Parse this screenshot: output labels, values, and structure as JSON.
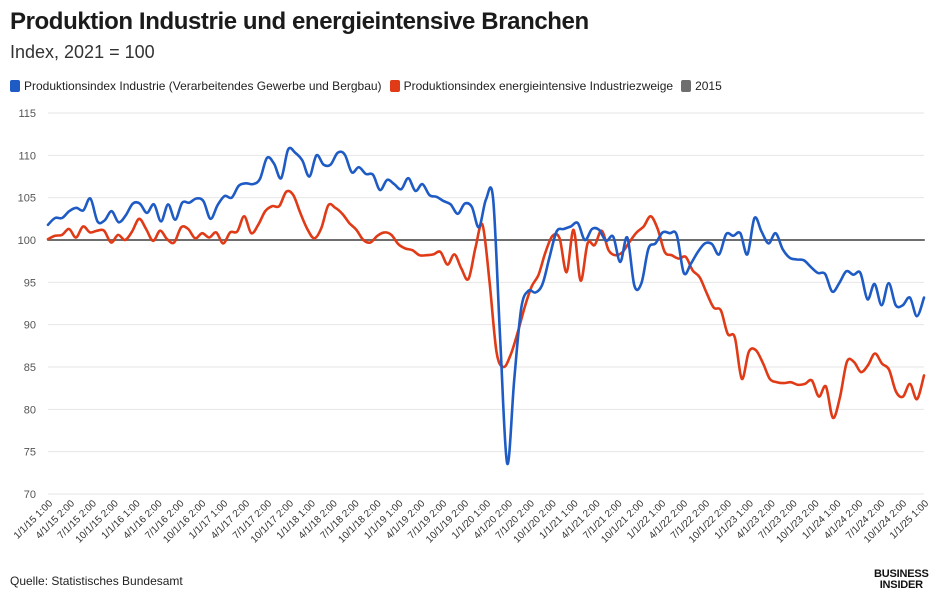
{
  "title": "Produktion Industrie und energieintensive Branchen",
  "subtitle": "Index, 2021 = 100",
  "source": "Quelle: Statistisches Bundesamt",
  "logo": {
    "line1": "BUSINESS",
    "line2": "INSIDER"
  },
  "chart_data": {
    "type": "line",
    "title": "Produktion Industrie und energieintensive Branchen",
    "subtitle": "Index, 2021 = 100",
    "xlabel": "",
    "ylabel": "",
    "ylim": [
      70,
      115
    ],
    "yticks": [
      70,
      75,
      80,
      85,
      90,
      95,
      100,
      105,
      110,
      115
    ],
    "grid": true,
    "legend_position": "top-left",
    "x_tick_labels": [
      "1/1/15 1:00",
      "4/1/15 2:00",
      "7/1/15 2:00",
      "10/1/15 2:00",
      "1/1/16 1:00",
      "4/1/16 2:00",
      "7/1/16 2:00",
      "10/1/16 2:00",
      "1/1/17 1:00",
      "4/1/17 2:00",
      "7/1/17 2:00",
      "10/1/17 2:00",
      "1/1/18 1:00",
      "4/1/18 2:00",
      "7/1/18 2:00",
      "10/1/18 2:00",
      "1/1/19 1:00",
      "4/1/19 2:00",
      "7/1/19 2:00",
      "10/1/19 2:00",
      "1/1/20 1:00",
      "4/1/20 2:00",
      "7/1/20 2:00",
      "10/1/20 2:00",
      "1/1/21 1:00",
      "4/1/21 2:00",
      "7/1/21 2:00",
      "10/1/21 2:00",
      "1/1/22 1:00",
      "4/1/22 2:00",
      "7/1/22 2:00",
      "10/1/22 2:00",
      "1/1/23 1:00",
      "4/1/23 2:00",
      "7/1/23 2:00",
      "10/1/23 2:00",
      "1/1/24 1:00",
      "4/1/24 2:00",
      "7/1/24 2:00",
      "10/1/24 2:00",
      "1/1/25 1:00"
    ],
    "series": [
      {
        "name": "Produktionsindex Industrie (Verarbeitendes Gewerbe und Bergbau)",
        "color": "#1f5bc4",
        "values": [
          101.8,
          102.6,
          102.6,
          103.4,
          103.8,
          103.5,
          104.9,
          102.2,
          102.3,
          103.4,
          102.1,
          102.9,
          104.3,
          104.3,
          103.2,
          104.2,
          102.2,
          104.2,
          102.4,
          104.4,
          104.4,
          104.9,
          104.6,
          102.5,
          104.1,
          105.2,
          105.0,
          106.4,
          106.7,
          106.6,
          107.2,
          109.7,
          109.0,
          107.3,
          110.7,
          110.3,
          109.4,
          107.5,
          110.0,
          108.9,
          108.9,
          110.3,
          110.1,
          108.0,
          108.6,
          107.8,
          107.7,
          105.9,
          107.1,
          106.6,
          106.0,
          107.3,
          105.8,
          106.6,
          105.3,
          105.1,
          104.6,
          104.2,
          103.1,
          104.3,
          103.9,
          101.5,
          104.8,
          104.9,
          88.5,
          73.6,
          83.6,
          92.0,
          94.0,
          93.8,
          94.8,
          98.0,
          101.0,
          101.3,
          101.6,
          102.0,
          100.0,
          101.3,
          101.2,
          99.9,
          100.4,
          97.4,
          100.3,
          94.6,
          94.9,
          99.0,
          99.6,
          100.9,
          100.8,
          100.6,
          96.1,
          97.2,
          98.6,
          99.6,
          99.5,
          98.3,
          100.7,
          100.5,
          100.8,
          98.3,
          102.6,
          101.0,
          99.6,
          100.8,
          98.9,
          97.9,
          97.7,
          97.6,
          96.8,
          96.1,
          96.0,
          93.9,
          94.9,
          96.3,
          95.9,
          96.1,
          93.0,
          94.8,
          92.3,
          94.9,
          92.3,
          92.3,
          93.2,
          91.0,
          93.2
        ]
      },
      {
        "name": "Produktionsindex energieintensive Industriezweige",
        "color": "#e03a16",
        "values": [
          100.1,
          100.5,
          100.6,
          101.3,
          100.3,
          101.6,
          100.9,
          101.1,
          101.1,
          99.7,
          100.6,
          100.0,
          101.0,
          102.5,
          101.3,
          99.9,
          101.1,
          100.1,
          99.7,
          101.5,
          101.3,
          100.2,
          100.8,
          100.3,
          100.9,
          99.6,
          100.9,
          101.0,
          102.8,
          100.8,
          101.8,
          103.4,
          104.0,
          104.0,
          105.7,
          105.3,
          103.2,
          101.3,
          100.2,
          101.4,
          104.1,
          103.8,
          103.1,
          102.0,
          101.2,
          100.0,
          99.7,
          100.5,
          100.9,
          100.6,
          99.5,
          99.0,
          98.8,
          98.2,
          98.2,
          98.3,
          98.6,
          97.1,
          98.3,
          96.6,
          95.4,
          99.1,
          101.8,
          95.1,
          86.8,
          85.0,
          86.4,
          89.0,
          92.0,
          94.5,
          95.9,
          98.6,
          100.5,
          100.2,
          96.2,
          101.2,
          95.2,
          99.6,
          99.4,
          101.1,
          98.8,
          98.2,
          98.6,
          99.8,
          100.9,
          101.6,
          102.8,
          101.3,
          98.6,
          98.2,
          97.8,
          98.0,
          96.4,
          95.6,
          93.7,
          92.0,
          91.7,
          88.9,
          88.5,
          83.6,
          86.8,
          87.0,
          85.5,
          83.6,
          83.2,
          83.1,
          83.2,
          82.9,
          83.0,
          83.4,
          81.5,
          82.7,
          79.0,
          81.4,
          85.6,
          85.6,
          84.4,
          85.2,
          86.6,
          85.4,
          84.7,
          82.1,
          81.5,
          83.0,
          81.2,
          84.0
        ]
      },
      {
        "name": "2015",
        "color": "#6e6e6e",
        "values": [
          100,
          100
        ]
      }
    ]
  }
}
